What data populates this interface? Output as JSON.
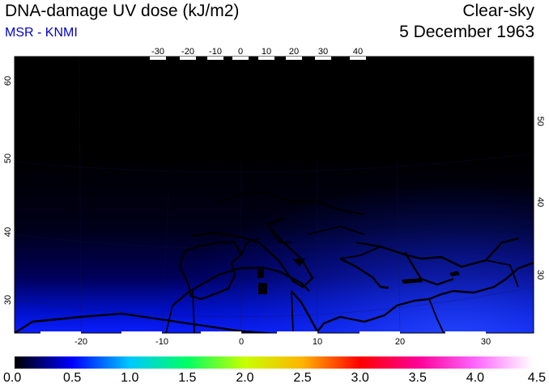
{
  "header": {
    "title": "DNA-damage UV dose (kJ/m2)",
    "producer": "MSR - KNMI",
    "condition": "Clear-sky",
    "date": "5 December 1963"
  },
  "colors": {
    "producer_text": "#0000cc",
    "map_dark": "#000000",
    "map_mid": "#00005a",
    "map_light": "#0a1eff"
  },
  "map": {
    "top_lon_labels": [
      "-30",
      "-20",
      "-10",
      "0",
      "10",
      "20",
      "30",
      "40"
    ],
    "bottom_lon_labels": [
      "-20",
      "-10",
      "0",
      "10",
      "20",
      "30"
    ],
    "left_lat_labels": [
      "60",
      "50",
      "40",
      "30"
    ],
    "right_lat_labels": [
      "50",
      "40",
      "30"
    ]
  },
  "colorbar": {
    "min": 0.0,
    "max": 4.5,
    "labels": [
      "0.0",
      "0.5",
      "1.0",
      "1.5",
      "2.0",
      "2.5",
      "3.0",
      "3.5",
      "4.0",
      "4.5"
    ],
    "stops": [
      "#000000",
      "#0000ff",
      "#00c8ff",
      "#00ff64",
      "#c8ff00",
      "#ffb400",
      "#ff0000",
      "#ff0096",
      "#ff66ff",
      "#ffffff"
    ]
  }
}
